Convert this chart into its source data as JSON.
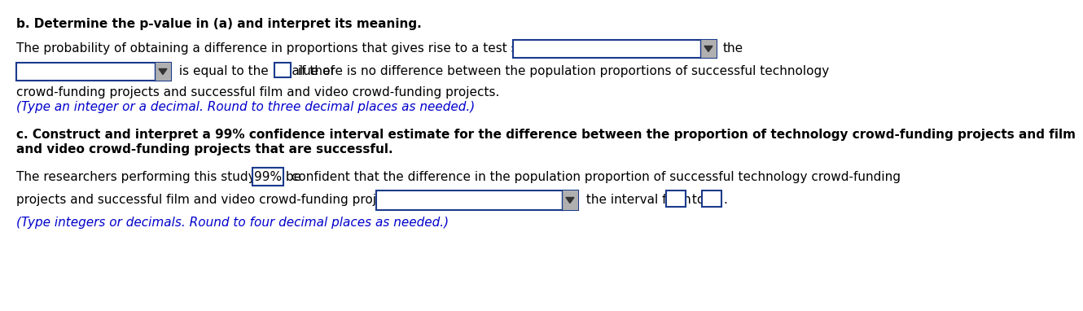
{
  "background_color": "#ffffff",
  "title_b": "b. Determine the p-value in (a) and interpret its meaning.",
  "line1_b": "The probability of obtaining a difference in proportions that gives rise to a test statistic",
  "line1_b_end": "the",
  "line2_b_mid1": " is equal to the p-value of ",
  "line2_b_mid2": " if there is no difference between the population proportions of successful technology",
  "line3_b": "crowd-funding projects and successful film and video crowd-funding projects.",
  "line4_b_italic": "(Type an integer or a decimal. Round to three decimal places as needed.)",
  "title_c": "c. Construct and interpret a 99% confidence interval estimate for the difference between the proportion of technology crowd-funding projects and film",
  "title_c2": "and video crowd-funding projects that are successful.",
  "line1_c": "The researchers performing this study can be",
  "line1_c_99": "99%",
  "line1_c_end": " confident that the difference in the population proportion of successful technology crowd-funding",
  "line2_c": "projects and successful film and video crowd-funding projects is",
  "line2_c_mid": " the interval from ",
  "line2_c_to": " to ",
  "line3_c_italic": "(Type integers or decimals. Round to four decimal places as needed.)",
  "box_color": "#1a3a8c",
  "text_color": "#000000",
  "blue_text_color": "#0000cc",
  "font_size": 11.0
}
